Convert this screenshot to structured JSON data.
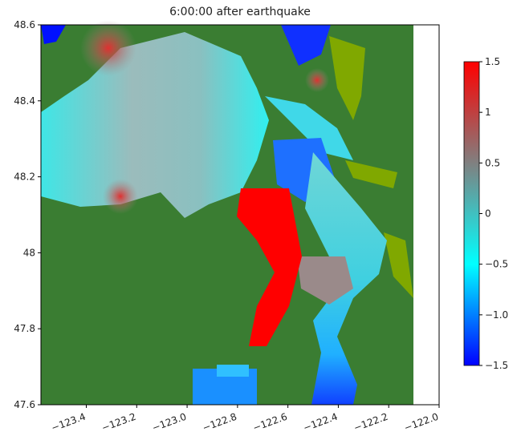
{
  "chart_data": {
    "type": "image",
    "title": "6:00:00 after earthquake",
    "xlim": [
      -123.58,
      -122.0
    ],
    "ylim": [
      47.6,
      48.6
    ],
    "xticks": [
      {
        "value": -123.4,
        "label": "−123.4"
      },
      {
        "value": -123.2,
        "label": "−123.2"
      },
      {
        "value": -123.0,
        "label": "−123.0"
      },
      {
        "value": -122.8,
        "label": "−122.8"
      },
      {
        "value": -122.6,
        "label": "−122.6"
      },
      {
        "value": -122.4,
        "label": "−122.4"
      },
      {
        "value": -122.2,
        "label": "−122.2"
      },
      {
        "value": -122.0,
        "label": "−122.0"
      }
    ],
    "yticks": [
      47.6,
      47.8,
      48.0,
      48.2,
      48.4,
      48.6
    ],
    "colorbar": {
      "lim": [
        -1.5,
        1.5
      ],
      "ticks": [
        {
          "value": -1.5,
          "label": "−1.5"
        },
        {
          "value": -1.0,
          "label": "−1.0"
        },
        {
          "value": -0.5,
          "label": "−0.5"
        },
        0.0,
        0.5,
        1.0,
        1.5
      ],
      "colormap": [
        "#0000ff",
        "#00ffff",
        "#808080",
        "#ff0000"
      ]
    }
  }
}
